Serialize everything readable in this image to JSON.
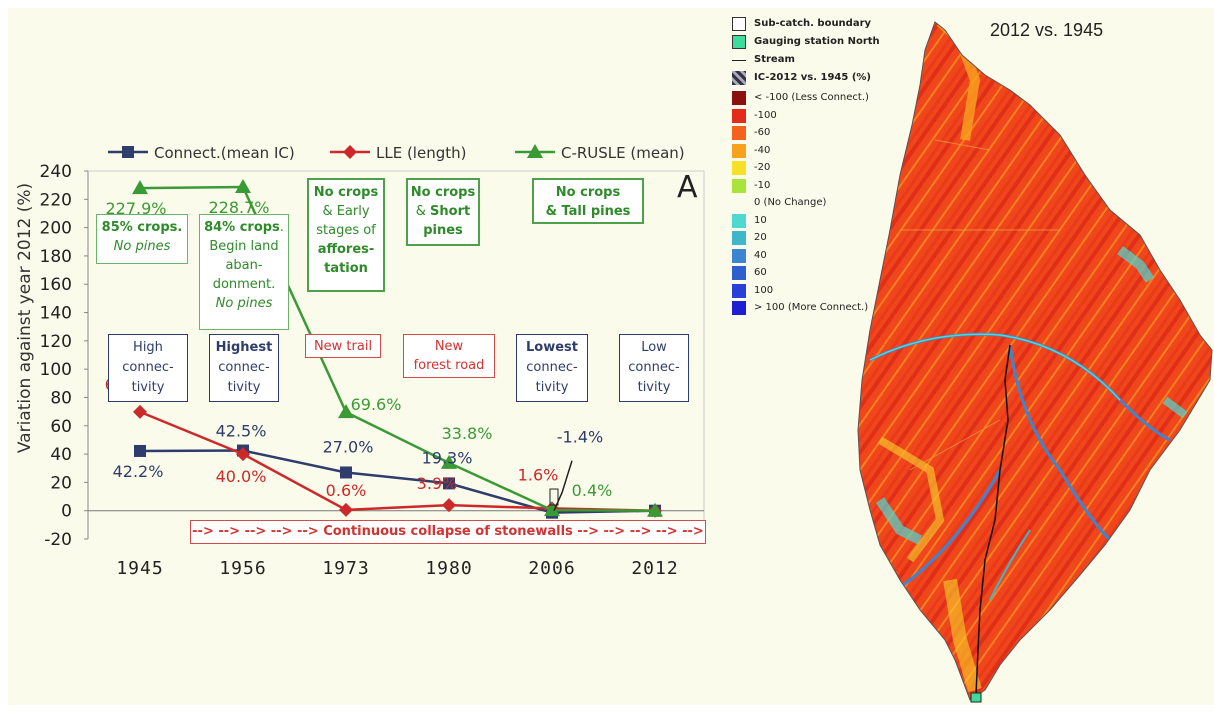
{
  "chart_data": {
    "type": "line",
    "categories": [
      "1945",
      "1956",
      "1973",
      "1980",
      "2006",
      "2012"
    ],
    "ylabel": "Variation against year 2012 (%)",
    "ylim": [
      -20,
      240
    ],
    "yticks": [
      -20,
      0,
      20,
      40,
      60,
      80,
      100,
      120,
      140,
      160,
      180,
      200,
      220,
      240
    ],
    "series": [
      {
        "name": "Connect.(mean IC)",
        "color": "#2e3d6b",
        "marker": "square",
        "values": [
          42.2,
          42.5,
          27.0,
          19.3,
          -1.4,
          0
        ],
        "labels": [
          "42.2%",
          "42.5%",
          "27.0%",
          "19.3%",
          "-1.4%",
          ""
        ]
      },
      {
        "name": "LLE (length)",
        "color": "#cc2a2a",
        "marker": "diamond",
        "values": [
          69.8,
          40.0,
          0.6,
          3.9,
          1.6,
          0
        ],
        "labels": [
          "69.8%",
          "40.0%",
          "0.6%",
          "3.9%",
          "1.6%",
          ""
        ]
      },
      {
        "name": "C-RUSLE (mean)",
        "color": "#3a9a35",
        "marker": "triangle",
        "values": [
          227.9,
          228.7,
          69.6,
          33.8,
          0.4,
          0
        ],
        "labels": [
          "227.9%",
          "228.7%",
          "69.6%",
          "33.8%",
          "0.4%",
          ""
        ]
      }
    ],
    "panel_label": "A"
  },
  "annotations": {
    "green": [
      {
        "lines": [
          {
            "t": "85% crops.",
            "b": true
          },
          {
            "t": "No pines",
            "i": true
          }
        ]
      },
      {
        "lines": [
          {
            "t": "84% crops",
            "b": true,
            "tail": "."
          },
          {
            "t": "Begin land"
          },
          {
            "t": "aban-"
          },
          {
            "t": "donment."
          },
          {
            "t": "No pines",
            "i": true
          }
        ]
      },
      {
        "lines": [
          {
            "t": "No crops",
            "b": true
          },
          {
            "t": "& Early"
          },
          {
            "t": "stages of"
          },
          {
            "t": "affores-",
            "b": true
          },
          {
            "t": "tation",
            "b": true
          }
        ]
      },
      {
        "lines": [
          {
            "t": "No crops",
            "b": true
          },
          {
            "t": "& ",
            "tailb": "Short"
          },
          {
            "t": "pines",
            "b": true
          }
        ]
      },
      {
        "lines": [
          {
            "t": "No crops",
            "b": true
          },
          {
            "t": "& Tall pines",
            "b": true
          }
        ]
      }
    ],
    "navy": [
      {
        "lines": [
          "High",
          "connec-",
          "tivity"
        ],
        "bold_first": false
      },
      {
        "lines": [
          "Highest",
          "connec-",
          "tivity"
        ],
        "bold_first": true
      },
      {
        "lines": [
          "Lowest",
          "connec-",
          "tivity"
        ],
        "bold_first": true
      },
      {
        "lines": [
          "Low",
          "connec-",
          "tivity"
        ],
        "bold_first": false
      }
    ],
    "red": [
      {
        "lines": [
          "New trail"
        ]
      },
      {
        "lines": [
          "New",
          "forest road"
        ]
      }
    ],
    "collapse": "--> --> --> --> --> Continuous collapse of stonewalls --> --> --> --> -->"
  },
  "map": {
    "title": "2012 vs. 1945",
    "legend": {
      "boundary": "Sub-catch. boundary",
      "gauging": "Gauging station North",
      "stream": "Stream",
      "ic_title": "IC-2012 vs. 1945 (%)",
      "classes": [
        {
          "label": "< -100 (Less Connect.)",
          "color": "#8b1111"
        },
        {
          "label": "-100",
          "color": "#e62a1a"
        },
        {
          "label": "-60",
          "color": "#f4621e"
        },
        {
          "label": "-40",
          "color": "#f7a21f"
        },
        {
          "label": "-20",
          "color": "#f5e02a"
        },
        {
          "label": "-10",
          "color": "#a8e43a"
        },
        {
          "label": "0 (No Change)",
          "color": "#fbfbec"
        },
        {
          "label": "10",
          "color": "#4fd8d0"
        },
        {
          "label": "20",
          "color": "#3fb7c9"
        },
        {
          "label": "40",
          "color": "#3d86cf"
        },
        {
          "label": "60",
          "color": "#2f5fcf"
        },
        {
          "label": "100",
          "color": "#2a3fd6"
        },
        {
          "label": "> 100 (More Connect.)",
          "color": "#1f1fd2"
        }
      ]
    }
  }
}
